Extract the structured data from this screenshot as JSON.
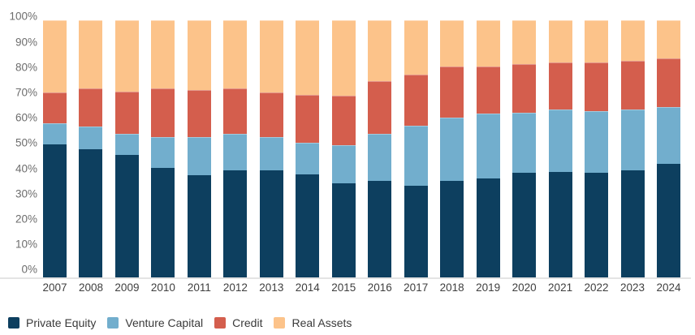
{
  "chart_data": {
    "type": "bar",
    "stacked": true,
    "title": "",
    "xlabel": "",
    "ylabel": "",
    "unit": "%",
    "grid": false,
    "legend_position": "bottom",
    "ylim": [
      0,
      100
    ],
    "yticks": [
      "0%",
      "10%",
      "20%",
      "30%",
      "40%",
      "50%",
      "60%",
      "70%",
      "80%",
      "90%",
      "100%"
    ],
    "categories": [
      "2007",
      "2008",
      "2009",
      "2010",
      "2011",
      "2012",
      "2013",
      "2014",
      "2015",
      "2016",
      "2017",
      "2018",
      "2019",
      "2020",
      "2021",
      "2022",
      "2023",
      "2024"
    ],
    "series": [
      {
        "name": "Private Equity",
        "color": "#0d3f5f",
        "values": [
          51,
          49,
          47,
          42,
          39,
          41,
          41,
          39.5,
          36,
          37,
          35,
          37,
          38,
          40,
          40.5,
          40,
          41,
          43.5
        ]
      },
      {
        "name": "Venture Capital",
        "color": "#72aecd",
        "values": [
          8,
          8.5,
          8,
          11.5,
          14.5,
          14,
          12.5,
          12,
          14.5,
          18,
          23,
          24,
          24.5,
          23,
          23.5,
          23.5,
          23,
          21.5
        ]
      },
      {
        "name": "Credit",
        "color": "#d45e4d",
        "values": [
          11.5,
          14.5,
          16,
          18.5,
          18,
          17,
          17,
          18,
          19,
          20,
          19.5,
          19.5,
          18,
          18.5,
          18,
          18.5,
          18.5,
          18.5
        ]
      },
      {
        "name": "Real Assets",
        "color": "#fcc38a",
        "values": [
          27.5,
          26,
          27,
          26,
          26.5,
          26,
          27.5,
          28.5,
          28.5,
          23,
          20.5,
          17.5,
          17.5,
          16.5,
          16,
          16,
          15.5,
          14.5
        ]
      }
    ]
  }
}
